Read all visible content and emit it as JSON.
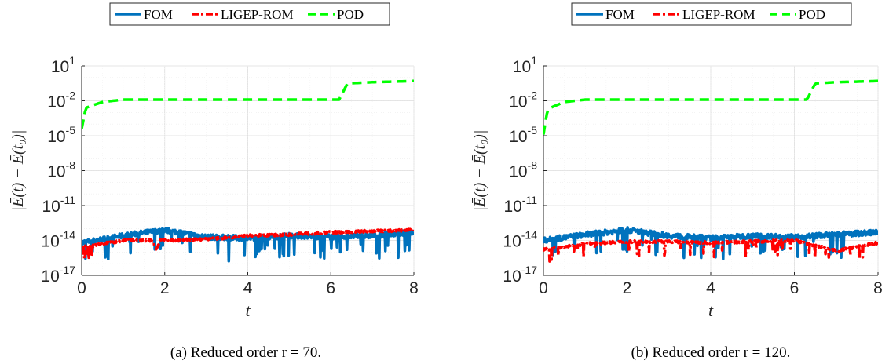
{
  "chart_data": [
    {
      "type": "line",
      "caption": "(a) Reduced order r = 70.",
      "xlabel": "t",
      "ylabel": "|Ē(t) − Ē(t₀)|",
      "yscale": "log",
      "xlim": [
        0,
        8
      ],
      "ylim_exponents": [
        -17,
        1
      ],
      "xticks": [
        "0",
        "2",
        "4",
        "6",
        "8"
      ],
      "yticks": [
        {
          "base": "10",
          "exp": "1"
        },
        {
          "base": "10",
          "exp": "-2"
        },
        {
          "base": "10",
          "exp": "-5"
        },
        {
          "base": "10",
          "exp": "-8"
        },
        {
          "base": "10",
          "exp": "-11"
        },
        {
          "base": "10",
          "exp": "-14"
        },
        {
          "base": "10",
          "exp": "-17"
        }
      ],
      "grid": true,
      "legend_position": "top",
      "series": [
        {
          "name": "FOM",
          "color": "#0072BD",
          "style": "solid",
          "log10_range": [
            -15.6,
            -12.8
          ],
          "log10_level": [
            [
              0,
              -14.2
            ],
            [
              1,
              -13.6
            ],
            [
              2,
              -13.1
            ],
            [
              3,
              -13.7
            ],
            [
              4,
              -13.8
            ],
            [
              5,
              -13.6
            ],
            [
              6,
              -13.7
            ],
            [
              7,
              -13.6
            ],
            [
              8,
              -13.3
            ]
          ]
        },
        {
          "name": "LIGEP-ROM",
          "color": "#FF0000",
          "style": "dashdot",
          "log10_level": [
            [
              0,
              -14.6
            ],
            [
              1,
              -14.0
            ],
            [
              2,
              -14.0
            ],
            [
              3,
              -13.9
            ],
            [
              4,
              -13.6
            ],
            [
              5,
              -13.5
            ],
            [
              6,
              -13.3
            ],
            [
              7,
              -13.2
            ],
            [
              8,
              -13.1
            ]
          ]
        },
        {
          "name": "POD",
          "color": "#00FF00",
          "style": "dashed",
          "log10_level": [
            [
              0,
              -4.4
            ],
            [
              0.1,
              -2.6
            ],
            [
              0.5,
              -2.1
            ],
            [
              1,
              -1.9
            ],
            [
              6.2,
              -1.9
            ],
            [
              6.4,
              -0.5
            ],
            [
              7,
              -0.4
            ],
            [
              8,
              -0.3
            ]
          ]
        }
      ]
    },
    {
      "type": "line",
      "caption": "(b) Reduced order r = 120.",
      "xlabel": "t",
      "ylabel": "|Ē(t) − Ē(t₀)|",
      "yscale": "log",
      "xlim": [
        0,
        8
      ],
      "ylim_exponents": [
        -17,
        1
      ],
      "xticks": [
        "0",
        "2",
        "4",
        "6",
        "8"
      ],
      "yticks": [
        {
          "base": "10",
          "exp": "1"
        },
        {
          "base": "10",
          "exp": "-2"
        },
        {
          "base": "10",
          "exp": "-5"
        },
        {
          "base": "10",
          "exp": "-8"
        },
        {
          "base": "10",
          "exp": "-11"
        },
        {
          "base": "10",
          "exp": "-14"
        },
        {
          "base": "10",
          "exp": "-17"
        }
      ],
      "grid": true,
      "legend_position": "top",
      "series": [
        {
          "name": "FOM",
          "color": "#0072BD",
          "style": "solid",
          "log10_level": [
            [
              0,
              -14.0
            ],
            [
              1,
              -13.5
            ],
            [
              2,
              -13.1
            ],
            [
              3,
              -13.6
            ],
            [
              4,
              -13.8
            ],
            [
              5,
              -13.6
            ],
            [
              6,
              -13.7
            ],
            [
              7,
              -13.5
            ],
            [
              8,
              -13.3
            ]
          ]
        },
        {
          "name": "LIGEP-ROM",
          "color": "#FF0000",
          "style": "dashdot",
          "log10_level": [
            [
              0,
              -14.8
            ],
            [
              1,
              -14.3
            ],
            [
              2,
              -14.1
            ],
            [
              3,
              -14.1
            ],
            [
              4,
              -14.2
            ],
            [
              5,
              -14.1
            ],
            [
              6,
              -14.0
            ],
            [
              7,
              -14.9
            ],
            [
              8,
              -14.2
            ]
          ]
        },
        {
          "name": "POD",
          "color": "#00FF00",
          "style": "dashed",
          "log10_level": [
            [
              0,
              -4.9
            ],
            [
              0.1,
              -2.7
            ],
            [
              0.5,
              -2.1
            ],
            [
              1,
              -1.9
            ],
            [
              6.3,
              -1.9
            ],
            [
              6.5,
              -0.5
            ],
            [
              7,
              -0.4
            ],
            [
              8,
              -0.3
            ]
          ]
        }
      ]
    }
  ]
}
